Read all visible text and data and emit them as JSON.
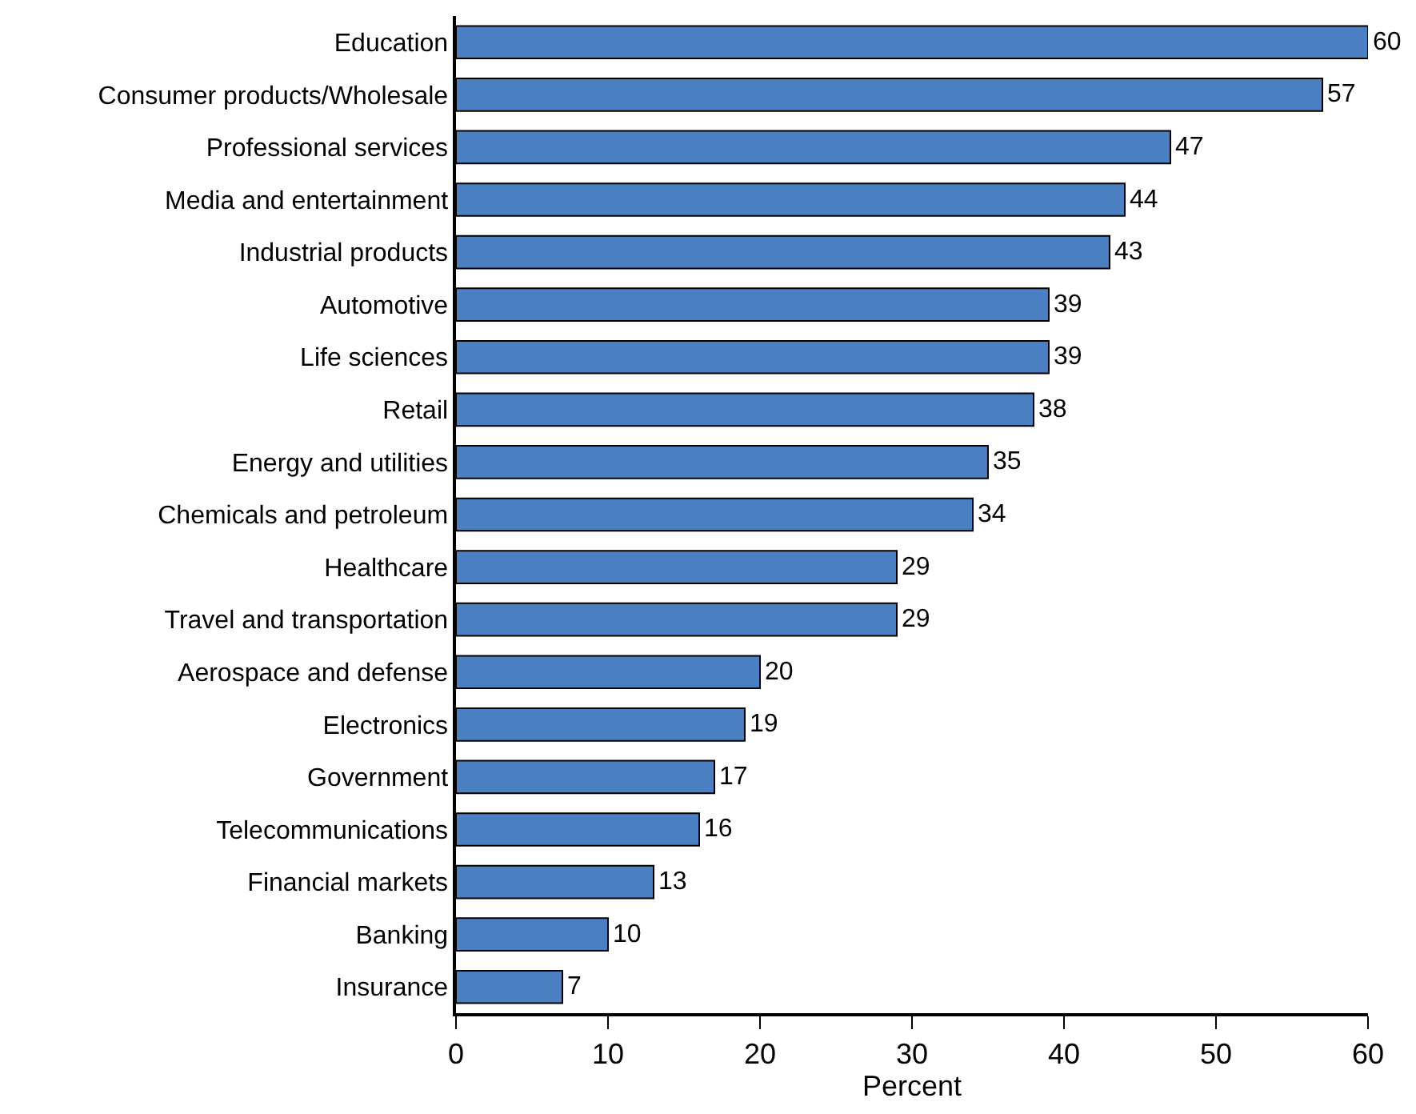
{
  "chart_data": {
    "type": "bar",
    "orientation": "horizontal",
    "xlabel": "Percent",
    "categories": [
      "Education",
      "Consumer products/Wholesale",
      "Professional services",
      "Media and entertainment",
      "Industrial products",
      "Automotive",
      "Life sciences",
      "Retail",
      "Energy and utilities",
      "Chemicals and petroleum",
      "Healthcare",
      "Travel and transportation",
      "Aerospace and defense",
      "Electronics",
      "Government",
      "Telecommunications",
      "Financial markets",
      "Banking",
      "Insurance"
    ],
    "values": [
      60,
      57,
      47,
      44,
      43,
      39,
      39,
      38,
      35,
      34,
      29,
      29,
      20,
      19,
      17,
      16,
      13,
      10,
      7
    ],
    "color": "#4a7fc1",
    "xlim": [
      0,
      60
    ],
    "xticks": [
      0,
      10,
      20,
      30,
      40,
      50,
      60
    ],
    "data_labels": true,
    "grid": false,
    "legend": false
  }
}
